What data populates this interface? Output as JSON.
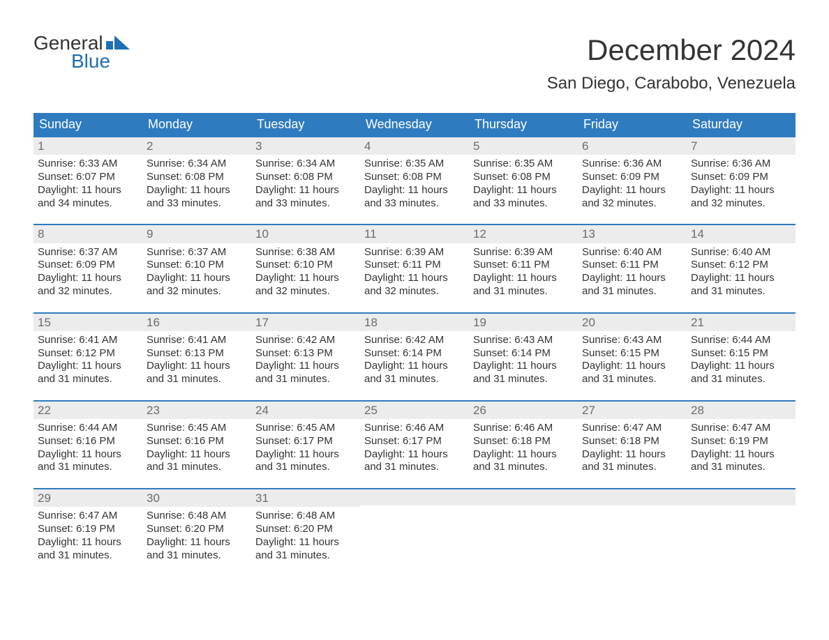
{
  "brand": {
    "word1": "General",
    "word2": "Blue"
  },
  "title": "December 2024",
  "location": "San Diego, Carabobo, Venezuela",
  "colors": {
    "header_bg": "#2f7bbf",
    "header_text": "#ffffff",
    "row_divider": "#2f7bbf",
    "daynum_bg": "#ececec",
    "daynum_text": "#6b6b6b",
    "body_text": "#333333",
    "brand_blue": "#1f6fb2",
    "page_bg": "#ffffff"
  },
  "typography": {
    "title_fontsize": 42,
    "location_fontsize": 24,
    "dow_fontsize": 18,
    "body_fontsize": 15,
    "daynum_fontsize": 17,
    "logo_fontsize": 28,
    "font_family": "Arial"
  },
  "dow": [
    "Sunday",
    "Monday",
    "Tuesday",
    "Wednesday",
    "Thursday",
    "Friday",
    "Saturday"
  ],
  "weeks": [
    [
      {
        "n": "1",
        "sr": "Sunrise: 6:33 AM",
        "ss": "Sunset: 6:07 PM",
        "d1": "Daylight: 11 hours",
        "d2": "and 34 minutes."
      },
      {
        "n": "2",
        "sr": "Sunrise: 6:34 AM",
        "ss": "Sunset: 6:08 PM",
        "d1": "Daylight: 11 hours",
        "d2": "and 33 minutes."
      },
      {
        "n": "3",
        "sr": "Sunrise: 6:34 AM",
        "ss": "Sunset: 6:08 PM",
        "d1": "Daylight: 11 hours",
        "d2": "and 33 minutes."
      },
      {
        "n": "4",
        "sr": "Sunrise: 6:35 AM",
        "ss": "Sunset: 6:08 PM",
        "d1": "Daylight: 11 hours",
        "d2": "and 33 minutes."
      },
      {
        "n": "5",
        "sr": "Sunrise: 6:35 AM",
        "ss": "Sunset: 6:08 PM",
        "d1": "Daylight: 11 hours",
        "d2": "and 33 minutes."
      },
      {
        "n": "6",
        "sr": "Sunrise: 6:36 AM",
        "ss": "Sunset: 6:09 PM",
        "d1": "Daylight: 11 hours",
        "d2": "and 32 minutes."
      },
      {
        "n": "7",
        "sr": "Sunrise: 6:36 AM",
        "ss": "Sunset: 6:09 PM",
        "d1": "Daylight: 11 hours",
        "d2": "and 32 minutes."
      }
    ],
    [
      {
        "n": "8",
        "sr": "Sunrise: 6:37 AM",
        "ss": "Sunset: 6:09 PM",
        "d1": "Daylight: 11 hours",
        "d2": "and 32 minutes."
      },
      {
        "n": "9",
        "sr": "Sunrise: 6:37 AM",
        "ss": "Sunset: 6:10 PM",
        "d1": "Daylight: 11 hours",
        "d2": "and 32 minutes."
      },
      {
        "n": "10",
        "sr": "Sunrise: 6:38 AM",
        "ss": "Sunset: 6:10 PM",
        "d1": "Daylight: 11 hours",
        "d2": "and 32 minutes."
      },
      {
        "n": "11",
        "sr": "Sunrise: 6:39 AM",
        "ss": "Sunset: 6:11 PM",
        "d1": "Daylight: 11 hours",
        "d2": "and 32 minutes."
      },
      {
        "n": "12",
        "sr": "Sunrise: 6:39 AM",
        "ss": "Sunset: 6:11 PM",
        "d1": "Daylight: 11 hours",
        "d2": "and 31 minutes."
      },
      {
        "n": "13",
        "sr": "Sunrise: 6:40 AM",
        "ss": "Sunset: 6:11 PM",
        "d1": "Daylight: 11 hours",
        "d2": "and 31 minutes."
      },
      {
        "n": "14",
        "sr": "Sunrise: 6:40 AM",
        "ss": "Sunset: 6:12 PM",
        "d1": "Daylight: 11 hours",
        "d2": "and 31 minutes."
      }
    ],
    [
      {
        "n": "15",
        "sr": "Sunrise: 6:41 AM",
        "ss": "Sunset: 6:12 PM",
        "d1": "Daylight: 11 hours",
        "d2": "and 31 minutes."
      },
      {
        "n": "16",
        "sr": "Sunrise: 6:41 AM",
        "ss": "Sunset: 6:13 PM",
        "d1": "Daylight: 11 hours",
        "d2": "and 31 minutes."
      },
      {
        "n": "17",
        "sr": "Sunrise: 6:42 AM",
        "ss": "Sunset: 6:13 PM",
        "d1": "Daylight: 11 hours",
        "d2": "and 31 minutes."
      },
      {
        "n": "18",
        "sr": "Sunrise: 6:42 AM",
        "ss": "Sunset: 6:14 PM",
        "d1": "Daylight: 11 hours",
        "d2": "and 31 minutes."
      },
      {
        "n": "19",
        "sr": "Sunrise: 6:43 AM",
        "ss": "Sunset: 6:14 PM",
        "d1": "Daylight: 11 hours",
        "d2": "and 31 minutes."
      },
      {
        "n": "20",
        "sr": "Sunrise: 6:43 AM",
        "ss": "Sunset: 6:15 PM",
        "d1": "Daylight: 11 hours",
        "d2": "and 31 minutes."
      },
      {
        "n": "21",
        "sr": "Sunrise: 6:44 AM",
        "ss": "Sunset: 6:15 PM",
        "d1": "Daylight: 11 hours",
        "d2": "and 31 minutes."
      }
    ],
    [
      {
        "n": "22",
        "sr": "Sunrise: 6:44 AM",
        "ss": "Sunset: 6:16 PM",
        "d1": "Daylight: 11 hours",
        "d2": "and 31 minutes."
      },
      {
        "n": "23",
        "sr": "Sunrise: 6:45 AM",
        "ss": "Sunset: 6:16 PM",
        "d1": "Daylight: 11 hours",
        "d2": "and 31 minutes."
      },
      {
        "n": "24",
        "sr": "Sunrise: 6:45 AM",
        "ss": "Sunset: 6:17 PM",
        "d1": "Daylight: 11 hours",
        "d2": "and 31 minutes."
      },
      {
        "n": "25",
        "sr": "Sunrise: 6:46 AM",
        "ss": "Sunset: 6:17 PM",
        "d1": "Daylight: 11 hours",
        "d2": "and 31 minutes."
      },
      {
        "n": "26",
        "sr": "Sunrise: 6:46 AM",
        "ss": "Sunset: 6:18 PM",
        "d1": "Daylight: 11 hours",
        "d2": "and 31 minutes."
      },
      {
        "n": "27",
        "sr": "Sunrise: 6:47 AM",
        "ss": "Sunset: 6:18 PM",
        "d1": "Daylight: 11 hours",
        "d2": "and 31 minutes."
      },
      {
        "n": "28",
        "sr": "Sunrise: 6:47 AM",
        "ss": "Sunset: 6:19 PM",
        "d1": "Daylight: 11 hours",
        "d2": "and 31 minutes."
      }
    ],
    [
      {
        "n": "29",
        "sr": "Sunrise: 6:47 AM",
        "ss": "Sunset: 6:19 PM",
        "d1": "Daylight: 11 hours",
        "d2": "and 31 minutes."
      },
      {
        "n": "30",
        "sr": "Sunrise: 6:48 AM",
        "ss": "Sunset: 6:20 PM",
        "d1": "Daylight: 11 hours",
        "d2": "and 31 minutes."
      },
      {
        "n": "31",
        "sr": "Sunrise: 6:48 AM",
        "ss": "Sunset: 6:20 PM",
        "d1": "Daylight: 11 hours",
        "d2": "and 31 minutes."
      },
      null,
      null,
      null,
      null
    ]
  ]
}
